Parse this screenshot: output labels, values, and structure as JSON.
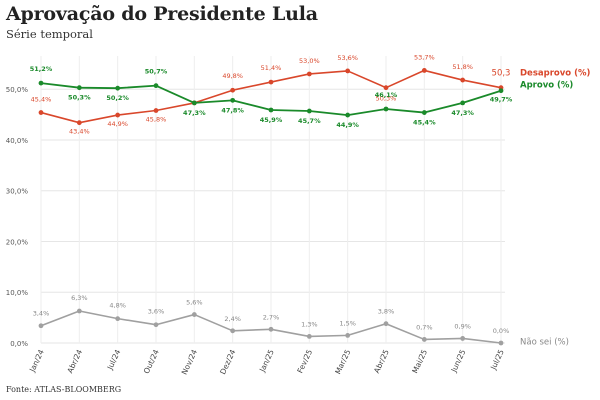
{
  "header": {
    "title": "Aprovação do Presidente Lula",
    "subtitle": "Série temporal"
  },
  "footer": {
    "source": "Fonte: ATLAS-BLOOMBERG"
  },
  "chart_data": {
    "type": "line",
    "title": "Aprovação do Presidente Lula",
    "subtitle": "Série temporal",
    "xlabel": "",
    "ylabel": "",
    "ylim": [
      0,
      50
    ],
    "y_ticks": [
      "0,0%",
      "10,0%",
      "20,0%",
      "30,0%",
      "40,0%",
      "50,0%"
    ],
    "grid": true,
    "legend": "right, next to line ends",
    "categories": [
      "Jan/24",
      "Abr/24",
      "Jul/24",
      "Out/24",
      "Nov/24",
      "Dez/24",
      "Jan/25",
      "Fev/25",
      "Mar/25",
      "Abr/25",
      "Mai/25",
      "Jun/25",
      "Jul/25"
    ],
    "series": [
      {
        "name": "Desaprovo (%)",
        "color": "#d9472b",
        "values": [
          45.4,
          43.4,
          44.9,
          45.8,
          47.3,
          49.8,
          51.4,
          53.0,
          53.6,
          50.3,
          53.7,
          51.8,
          50.3
        ],
        "labels": [
          "45,4%",
          "43,4%",
          "44,9%",
          "45,8%",
          "",
          "49,8%",
          "51,4%",
          "53,0%",
          "53,6%",
          "50,3%",
          "53,7%",
          "51,8%",
          "50,3"
        ]
      },
      {
        "name": "Aprovo (%)",
        "color": "#1a8a2a",
        "values": [
          51.2,
          50.3,
          50.2,
          50.7,
          47.3,
          47.8,
          45.9,
          45.7,
          44.9,
          46.1,
          45.4,
          47.3,
          49.7
        ],
        "labels": [
          "51,2%",
          "50,3%",
          "50,2%",
          "50,7%",
          "47,3%",
          "47,8%",
          "45,9%",
          "45,7%",
          "44,9%",
          "46,1%",
          "45,4%",
          "47,3%",
          "49,7%"
        ]
      },
      {
        "name": "Não sei (%)",
        "color": "#a0a0a0",
        "values": [
          3.4,
          6.3,
          4.8,
          3.6,
          5.6,
          2.4,
          2.7,
          1.3,
          1.5,
          3.8,
          0.7,
          0.9,
          0.0
        ],
        "labels": [
          "3,4%",
          "6,3%",
          "4,8%",
          "3,6%",
          "5,6%",
          "2,4%",
          "2,7%",
          "1,3%",
          "1,5%",
          "3,8%",
          "0,7%",
          "0,9%",
          "0,0%"
        ]
      }
    ]
  }
}
